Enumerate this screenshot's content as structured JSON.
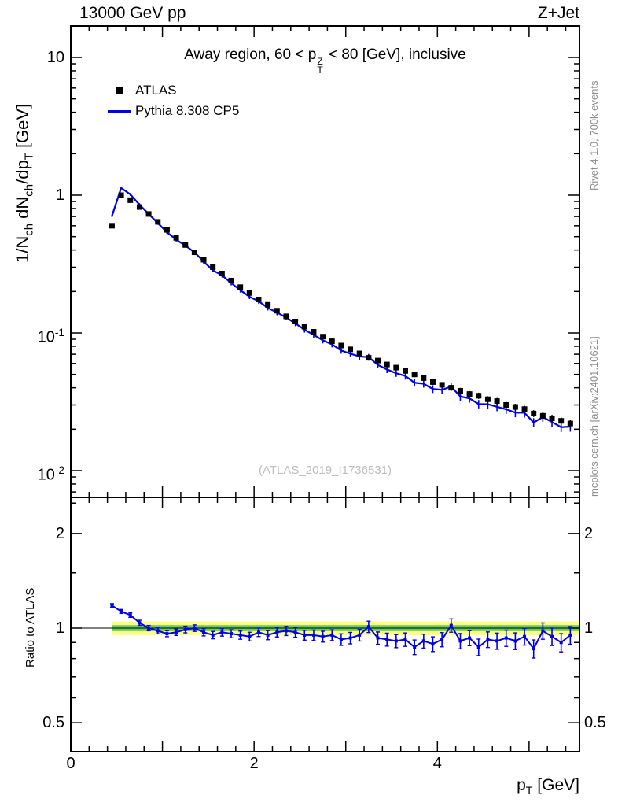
{
  "header": {
    "left": "13000 GeV pp",
    "right": "Z+Jet"
  },
  "title": {
    "pre": "Away region, 60 < p",
    "p_sup": "Z",
    "p_sub": "T",
    "post": " < 80 [GeV], inclusive"
  },
  "legend": {
    "items": [
      {
        "label": "ATLAS"
      },
      {
        "label": "Pythia 8.308 CP5"
      }
    ]
  },
  "labels": {
    "y1": "1/N",
    "y1s": "ch",
    "y2": " dN",
    "y2s": "ch",
    "y3": "/dp",
    "y3s": "T",
    "y4": " [GeV]",
    "ratio_y": "Ratio to ATLAS",
    "x1": "p",
    "x1s": "T",
    "x2": " [GeV]"
  },
  "watermark": "(ATLAS_2019_I1736531)",
  "side_texts": {
    "top": "Rivet 4.1.0,  700k events",
    "bottom": "mcplots.cern.ch [arXiv:2401.10621]"
  },
  "colors": {
    "atlas": "#000000",
    "pythia": "#0000e6",
    "band_outer": "#ffff80",
    "band_inner": "#66cc66",
    "frame": "#000000"
  },
  "chart_data": {
    "type": "line",
    "xlabel": "pT [GeV]",
    "xlim": [
      0,
      5.55
    ],
    "xticks": [
      {
        "v": 0,
        "t": "0"
      },
      {
        "v": 2,
        "t": "2"
      },
      {
        "v": 4,
        "t": "4"
      }
    ],
    "panels": [
      {
        "name": "main",
        "yscale": "log",
        "ylabel": "1/Nch dNch/dpT [GeV]",
        "ylim": [
          0.00645,
          16.9
        ],
        "yticks": [
          {
            "v": 10,
            "t": "10"
          },
          {
            "v": 1,
            "t": "1"
          },
          {
            "v": 0.1,
            "t": "10",
            "e": "-1"
          },
          {
            "v": 0.01,
            "t": "10",
            "e": "-2"
          }
        ]
      },
      {
        "name": "ratio",
        "yscale": "log",
        "ylabel": "Ratio to ATLAS",
        "ylim": [
          0.404,
          2.61
        ],
        "yticks": [
          {
            "v": 2,
            "t": "2"
          },
          {
            "v": 1,
            "t": "1"
          },
          {
            "v": 0.5,
            "t": "0.5"
          }
        ],
        "yminor": [
          0.6,
          0.7,
          0.8,
          0.9,
          1.5,
          2.5
        ],
        "band_outer": 0.05,
        "band_inner": 0.022,
        "band_start_x": 0.45
      }
    ],
    "x": [
      0.45,
      0.55,
      0.65,
      0.75,
      0.85,
      0.95,
      1.05,
      1.15,
      1.25,
      1.35,
      1.45,
      1.55,
      1.65,
      1.75,
      1.85,
      1.95,
      2.05,
      2.15,
      2.25,
      2.35,
      2.45,
      2.55,
      2.65,
      2.75,
      2.85,
      2.95,
      3.05,
      3.15,
      3.25,
      3.35,
      3.45,
      3.55,
      3.65,
      3.75,
      3.85,
      3.95,
      4.05,
      4.15,
      4.25,
      4.35,
      4.45,
      4.55,
      4.65,
      4.75,
      4.85,
      4.95,
      5.05,
      5.15,
      5.25,
      5.35,
      5.45
    ],
    "series": [
      {
        "name": "ATLAS",
        "style": "marker-square",
        "values": [
          0.6,
          1.0,
          0.92,
          0.82,
          0.73,
          0.64,
          0.56,
          0.49,
          0.435,
          0.385,
          0.34,
          0.3,
          0.27,
          0.24,
          0.215,
          0.195,
          0.175,
          0.16,
          0.145,
          0.132,
          0.121,
          0.111,
          0.102,
          0.094,
          0.087,
          0.081,
          0.076,
          0.071,
          0.066,
          0.063,
          0.059,
          0.056,
          0.053,
          0.05,
          0.047,
          0.044,
          0.042,
          0.04,
          0.038,
          0.036,
          0.035,
          0.033,
          0.032,
          0.03,
          0.029,
          0.028,
          0.026,
          0.025,
          0.024,
          0.023,
          0.022
        ]
      },
      {
        "name": "Pythia 8.308 CP5",
        "style": "line",
        "ratio_to_atlas": [
          1.18,
          1.13,
          1.1,
          1.04,
          1.0,
          0.98,
          0.96,
          0.97,
          0.99,
          1.0,
          0.97,
          0.95,
          0.97,
          0.96,
          0.95,
          0.94,
          0.97,
          0.95,
          0.97,
          0.98,
          0.97,
          0.95,
          0.95,
          0.94,
          0.95,
          0.92,
          0.93,
          0.95,
          1.01,
          0.93,
          0.92,
          0.91,
          0.92,
          0.87,
          0.91,
          0.89,
          0.92,
          1.02,
          0.91,
          0.93,
          0.87,
          0.92,
          0.91,
          0.93,
          0.91,
          0.94,
          0.86,
          0.98,
          0.94,
          0.9,
          0.95
        ],
        "ratio_err": [
          0.011,
          0.011,
          0.012,
          0.013,
          0.013,
          0.014,
          0.014,
          0.015,
          0.016,
          0.016,
          0.017,
          0.017,
          0.018,
          0.019,
          0.019,
          0.02,
          0.02,
          0.021,
          0.022,
          0.022,
          0.023,
          0.023,
          0.024,
          0.025,
          0.025,
          0.026,
          0.026,
          0.027,
          0.028,
          0.028,
          0.029,
          0.029,
          0.03,
          0.031,
          0.031,
          0.032,
          0.032,
          0.033,
          0.034,
          0.034,
          0.035,
          0.035,
          0.036,
          0.037,
          0.037,
          0.038,
          0.038,
          0.039,
          0.04,
          0.04,
          0.041
        ]
      }
    ]
  }
}
